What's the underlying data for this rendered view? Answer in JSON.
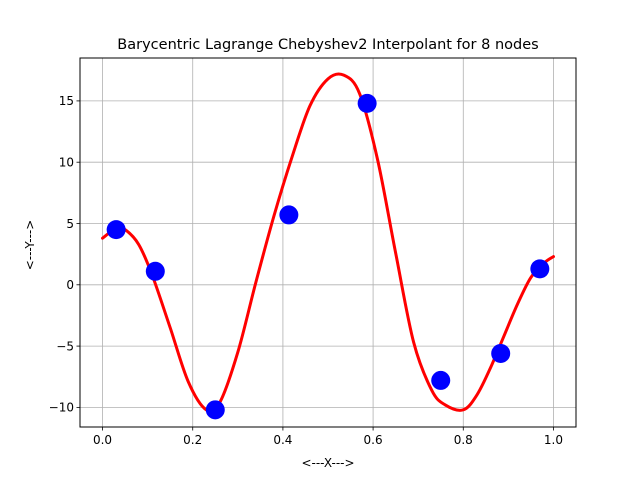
{
  "chart_data": {
    "type": "line",
    "title": "Barycentric Lagrange Chebyshev2 Interpolant for 8 nodes",
    "xlabel": "<---X--->",
    "ylabel": "<---Y--->",
    "xlim": [
      -0.05,
      1.05
    ],
    "ylim": [
      -11.6,
      18.5
    ],
    "xticks": [
      0.0,
      0.2,
      0.4,
      0.6,
      0.8,
      1.0
    ],
    "xtick_labels": [
      "0.0",
      "0.2",
      "0.4",
      "0.6",
      "0.8",
      "1.0"
    ],
    "yticks": [
      -10,
      -5,
      0,
      5,
      10,
      15
    ],
    "ytick_labels": [
      "−10",
      "−5",
      "0",
      "5",
      "10",
      "15"
    ],
    "grid": true,
    "series": [
      {
        "kind": "line",
        "color": "#ff0000",
        "x": [
          0.0,
          0.03,
          0.05,
          0.08,
          0.11,
          0.15,
          0.19,
          0.23,
          0.26,
          0.3,
          0.34,
          0.38,
          0.42,
          0.46,
          0.5,
          0.535,
          0.57,
          0.61,
          0.65,
          0.69,
          0.73,
          0.76,
          0.8,
          0.83,
          0.86,
          0.89,
          0.92,
          0.95,
          0.98,
          1.0
        ],
        "y": [
          3.8,
          4.6,
          4.5,
          3.3,
          0.8,
          -3.5,
          -7.9,
          -10.2,
          -9.6,
          -5.5,
          0.2,
          5.6,
          10.4,
          14.6,
          16.8,
          17.1,
          15.6,
          10.2,
          2.6,
          -4.7,
          -8.6,
          -9.8,
          -10.2,
          -9.0,
          -6.8,
          -4.2,
          -1.6,
          0.6,
          1.8,
          2.3
        ]
      },
      {
        "kind": "scatter",
        "color": "#0000ff",
        "x": [
          0.0302,
          0.117,
          0.25,
          0.4132,
          0.5868,
          0.75,
          0.883,
          0.9698
        ],
        "y": [
          4.5,
          1.1,
          -10.2,
          5.7,
          14.8,
          -7.8,
          -5.6,
          1.3
        ]
      }
    ]
  }
}
